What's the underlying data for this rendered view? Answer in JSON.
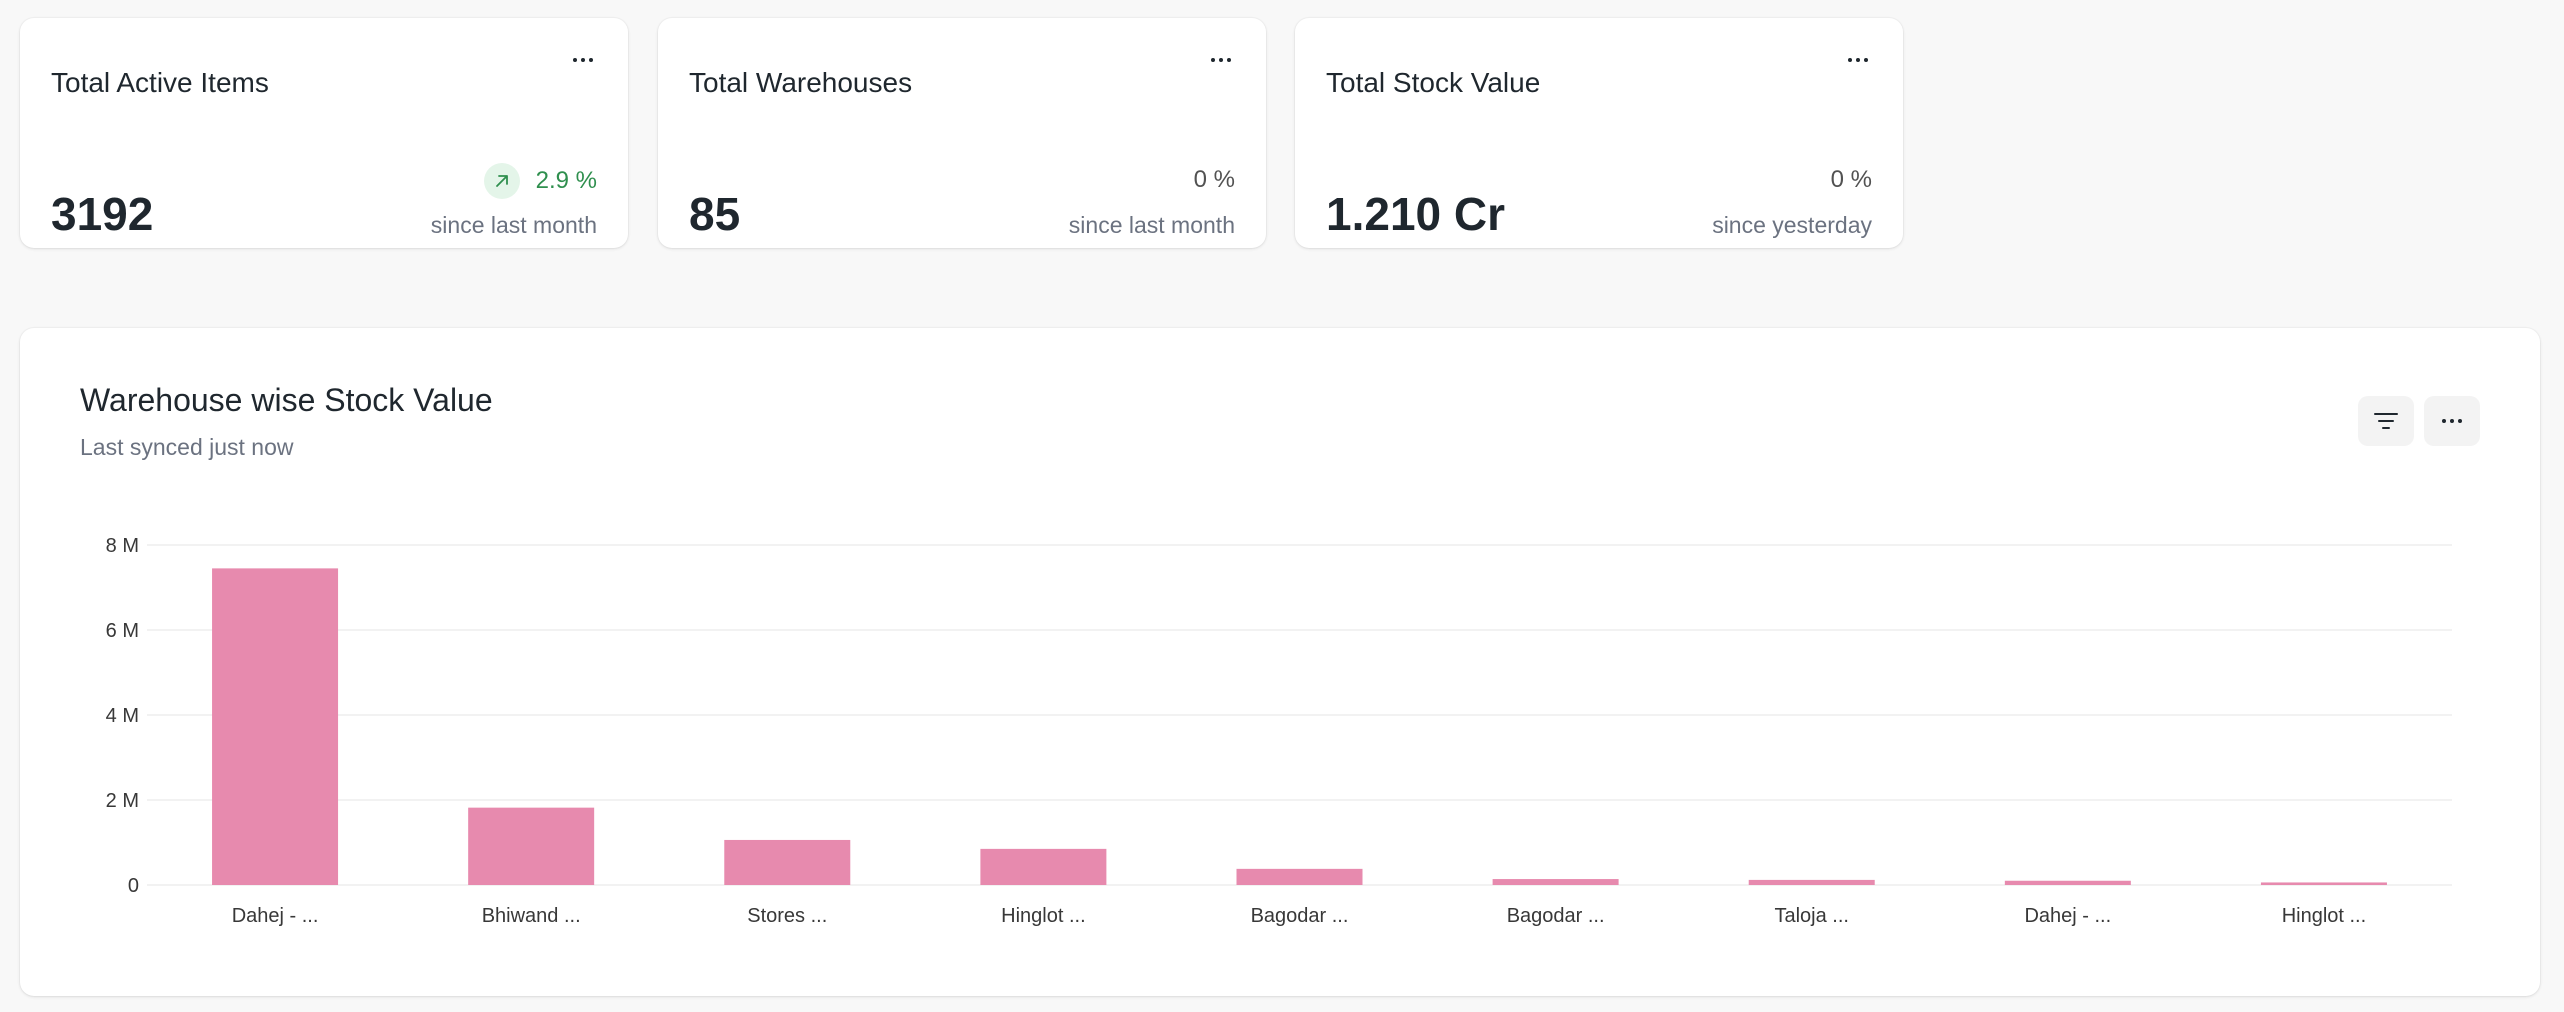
{
  "cards": [
    {
      "title": "Total Active Items",
      "value": "3192",
      "delta": "2.9 %",
      "delta_trend": "up",
      "since": "since last month"
    },
    {
      "title": "Total Warehouses",
      "value": "85",
      "delta": "0 %",
      "delta_trend": "neutral",
      "since": "since last month"
    },
    {
      "title": "Total Stock Value",
      "value": "1.210 Cr",
      "delta": "0 %",
      "delta_trend": "neutral",
      "since": "since yesterday"
    }
  ],
  "chart_card": {
    "title": "Warehouse wise Stock Value",
    "subtitle": "Last synced just now",
    "filter_icon": "filter-icon",
    "menu_icon": "more-horizontal-icon"
  },
  "colors": {
    "bar": "#e78aae",
    "trend_up_text": "#2f8f4e",
    "trend_up_bg": "#e4f5e9",
    "grid": "#ededed"
  },
  "chart_data": {
    "type": "bar",
    "title": "Warehouse wise Stock Value",
    "categories": [
      "Dahej - ...",
      "Bhiwand ...",
      "Stores ...",
      "Hinglot ...",
      "Bagodar ...",
      "Bagodar ...",
      "Taloja ...",
      "Dahej - ...",
      "Hinglot ..."
    ],
    "values": [
      7450000,
      1820000,
      1060000,
      850000,
      380000,
      140000,
      120000,
      100000,
      60000
    ],
    "ylim": [
      0,
      8000000
    ],
    "yticks": [
      0,
      2000000,
      4000000,
      6000000,
      8000000
    ],
    "ytick_labels": [
      "0",
      "2 M",
      "4 M",
      "6 M",
      "8 M"
    ],
    "grid": true,
    "legend": "none"
  }
}
